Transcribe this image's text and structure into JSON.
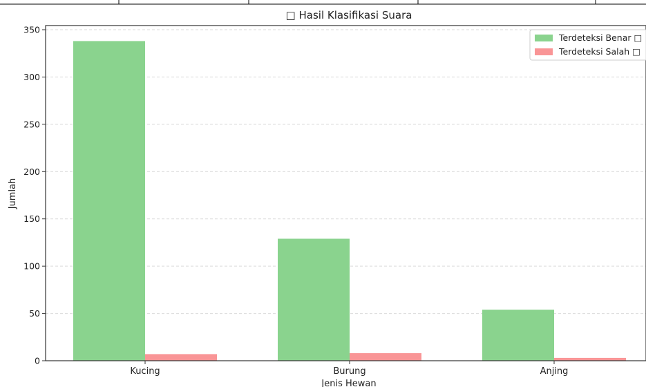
{
  "chart_data": {
    "type": "bar",
    "title": "□ Hasil Klasifikasi Suara",
    "xlabel": "Jenis Hewan",
    "ylabel": "Jumlah",
    "categories": [
      "Kucing",
      "Burung",
      "Anjing"
    ],
    "series": [
      {
        "name": "Terdeteksi Benar □",
        "color": "#8ad38e",
        "values": [
          338,
          129,
          54
        ]
      },
      {
        "name": "Terdeteksi Salah □",
        "color": "#f99596",
        "values": [
          7,
          8,
          3
        ]
      }
    ],
    "ylim": [
      0,
      355
    ],
    "yticks": [
      0,
      50,
      100,
      150,
      200,
      250,
      300,
      350
    ],
    "grid": "y-dashed",
    "legend_position": "top-right"
  }
}
